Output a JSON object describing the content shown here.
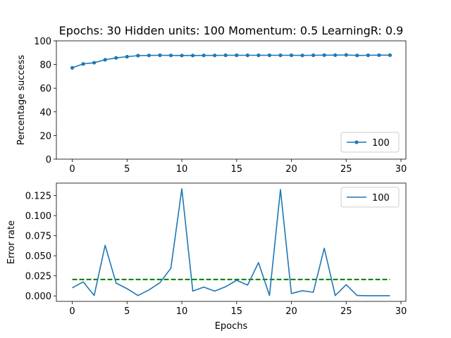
{
  "figure": {
    "title": "Epochs: 30 Hidden units: 100 Momentum: 0.5 LearningR: 0.9"
  },
  "chart_data": [
    {
      "type": "line",
      "title": "Epochs: 30 Hidden units: 100 Momentum: 0.5 LearningR: 0.9",
      "xlabel": "",
      "ylabel": "Percentage success",
      "xlim": [
        -1.45,
        30.45
      ],
      "ylim": [
        0,
        100
      ],
      "xticks": [
        "0",
        "5",
        "10",
        "15",
        "20",
        "25",
        "30"
      ],
      "yticks": [
        "0",
        "20",
        "40",
        "60",
        "80",
        "100"
      ],
      "grid": false,
      "legend": "lower-right",
      "markers": true,
      "series": [
        {
          "name": "100",
          "color": "#1f77b4",
          "x": [
            0,
            1,
            2,
            3,
            4,
            5,
            6,
            7,
            8,
            9,
            10,
            11,
            12,
            13,
            14,
            15,
            16,
            17,
            18,
            19,
            20,
            21,
            22,
            23,
            24,
            25,
            26,
            27,
            28,
            29
          ],
          "values": [
            77.2,
            80.5,
            81.5,
            84.0,
            85.6,
            86.6,
            87.5,
            87.7,
            87.8,
            87.7,
            87.6,
            87.6,
            87.7,
            87.7,
            87.8,
            87.8,
            87.8,
            87.8,
            87.8,
            87.8,
            87.8,
            87.7,
            87.8,
            87.9,
            87.9,
            88.1,
            87.7,
            87.8,
            87.9,
            87.9
          ]
        }
      ]
    },
    {
      "type": "line",
      "title": "",
      "xlabel": "Epochs",
      "ylabel": "Error rate",
      "xlim": [
        -1.45,
        30.45
      ],
      "ylim": [
        -0.0068,
        0.1405
      ],
      "xticks": [
        "0",
        "5",
        "10",
        "15",
        "20",
        "25",
        "30"
      ],
      "yticks": [
        "0.000",
        "0.025",
        "0.050",
        "0.075",
        "0.100",
        "0.125"
      ],
      "grid": false,
      "legend": "upper-right",
      "markers": false,
      "series": [
        {
          "name": "100",
          "color": "#1f77b4",
          "x": [
            0,
            1,
            2,
            3,
            4,
            5,
            6,
            7,
            8,
            9,
            10,
            11,
            12,
            13,
            14,
            15,
            16,
            17,
            18,
            19,
            20,
            21,
            22,
            23,
            24,
            25,
            26,
            27,
            28,
            29
          ],
          "values": [
            0.01,
            0.0175,
            0.0005,
            0.063,
            0.016,
            0.009,
            0.0005,
            0.0075,
            0.0165,
            0.0345,
            0.1335,
            0.006,
            0.011,
            0.006,
            0.0115,
            0.0195,
            0.0135,
            0.0415,
            0.0005,
            0.1325,
            0.003,
            0.0065,
            0.0045,
            0.0595,
            0.0005,
            0.014,
            0.0005,
            0.0003,
            0.0003,
            0.0003
          ]
        }
      ],
      "reference_line": {
        "y": 0.0205,
        "x_range": [
          0,
          29
        ],
        "color": "#008000",
        "style": "dashed"
      }
    }
  ]
}
